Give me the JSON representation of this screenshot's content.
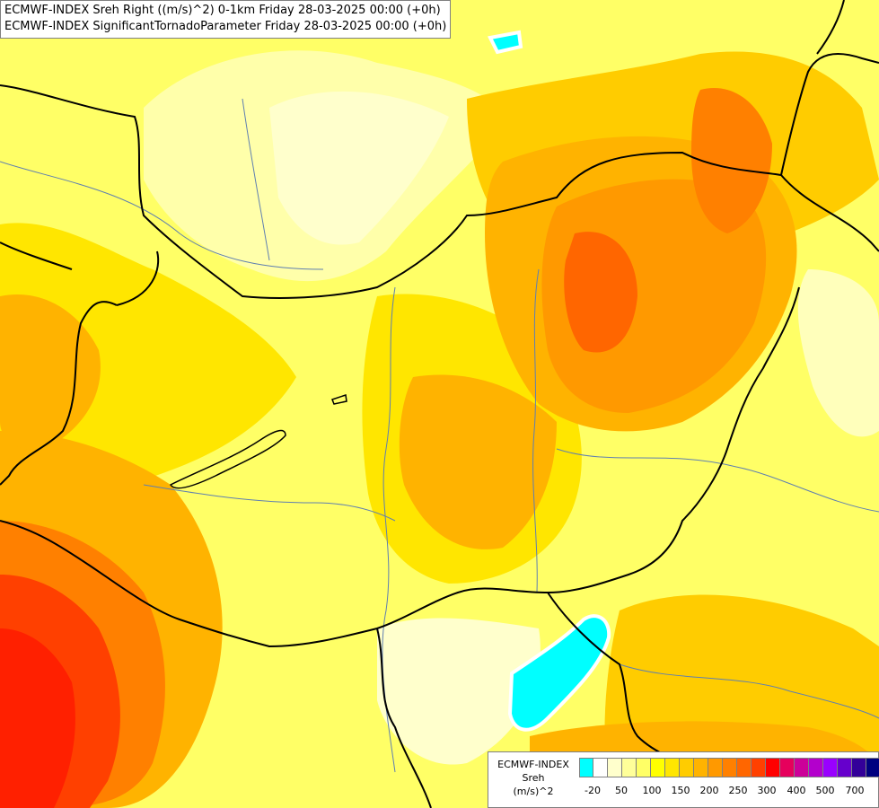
{
  "header": {
    "line1": "ECMWF-INDEX Sreh Right ((m/s)^2) 0-1km Friday 28-03-2025 00:00 (+0h)",
    "line2": "ECMWF-INDEX SignificantTornadoParameter Friday 28-03-2025 00:00 (+0h)"
  },
  "legend": {
    "source": "ECMWF-INDEX",
    "variable": "Sreh",
    "unit": "(m/s)^2",
    "colors": [
      "#00ffff",
      "#ffffff",
      "#ffffcc",
      "#ffff99",
      "#ffff66",
      "#ffff00",
      "#ffe600",
      "#ffcc00",
      "#ffb300",
      "#ff9900",
      "#ff8000",
      "#ff6600",
      "#ff4000",
      "#ff0000",
      "#e6005c",
      "#cc0099",
      "#b300cc",
      "#9900ff",
      "#6600cc",
      "#330099",
      "#000080"
    ],
    "ticks": [
      "-20",
      "50",
      "100",
      "150",
      "200",
      "250",
      "300",
      "400",
      "500",
      "700"
    ]
  }
}
